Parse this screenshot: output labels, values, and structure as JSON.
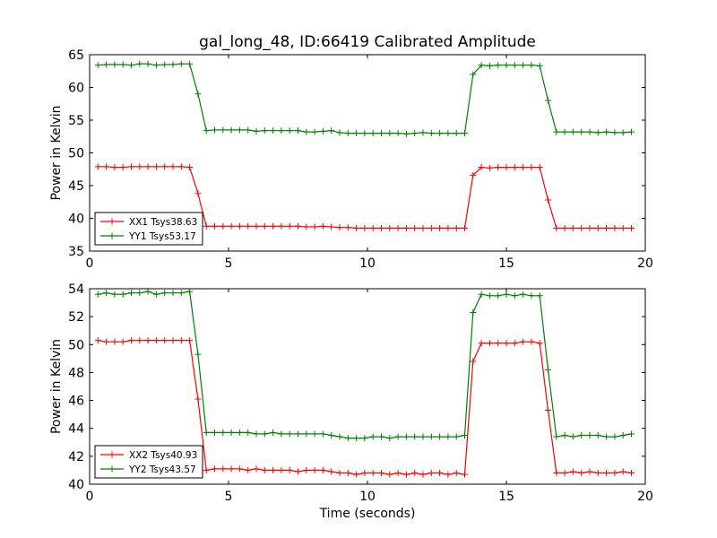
{
  "chart_data": [
    {
      "type": "line",
      "title": "gal_long_48, ID:66419 Calibrated Amplitude",
      "xlabel": "",
      "ylabel": "Power in Kelvin",
      "xlim": [
        0,
        20
      ],
      "ylim": [
        35,
        65
      ],
      "xticks": [
        0,
        5,
        10,
        15,
        20
      ],
      "yticks": [
        35,
        40,
        45,
        50,
        55,
        60,
        65
      ],
      "grid": false,
      "legend_position": "lower-left",
      "x": [
        0.3,
        0.6,
        0.9,
        1.2,
        1.5,
        1.8,
        2.1,
        2.4,
        2.7,
        3.0,
        3.3,
        3.6,
        3.9,
        4.2,
        4.5,
        4.8,
        5.1,
        5.4,
        5.7,
        6.0,
        6.3,
        6.6,
        6.9,
        7.2,
        7.5,
        7.8,
        8.1,
        8.4,
        8.7,
        9.0,
        9.3,
        9.6,
        9.9,
        10.2,
        10.5,
        10.8,
        11.1,
        11.4,
        11.7,
        12.0,
        12.3,
        12.6,
        12.9,
        13.2,
        13.5,
        13.8,
        14.1,
        14.4,
        14.7,
        15.0,
        15.3,
        15.6,
        15.9,
        16.2,
        16.5,
        16.8,
        17.1,
        17.4,
        17.7,
        18.0,
        18.3,
        18.6,
        18.9,
        19.2,
        19.5
      ],
      "series": [
        {
          "name": "XX1 Tsys38.63",
          "color": "#ff0000",
          "values": [
            47.9,
            47.9,
            47.8,
            47.8,
            47.9,
            47.9,
            47.9,
            47.9,
            47.9,
            47.9,
            47.9,
            47.8,
            43.8,
            38.8,
            38.8,
            38.8,
            38.8,
            38.8,
            38.8,
            38.8,
            38.8,
            38.8,
            38.8,
            38.8,
            38.8,
            38.7,
            38.7,
            38.8,
            38.7,
            38.6,
            38.6,
            38.5,
            38.5,
            38.5,
            38.5,
            38.5,
            38.5,
            38.5,
            38.5,
            38.5,
            38.5,
            38.5,
            38.5,
            38.5,
            38.5,
            46.6,
            47.8,
            47.7,
            47.8,
            47.8,
            47.8,
            47.8,
            47.8,
            47.8,
            42.8,
            38.5,
            38.5,
            38.5,
            38.5,
            38.5,
            38.5,
            38.5,
            38.5,
            38.5,
            38.5
          ]
        },
        {
          "name": "YY1 Tsys53.17",
          "color": "#008000",
          "values": [
            63.4,
            63.5,
            63.5,
            63.5,
            63.4,
            63.6,
            63.6,
            63.4,
            63.5,
            63.5,
            63.6,
            63.6,
            59.0,
            53.4,
            53.5,
            53.5,
            53.5,
            53.5,
            53.5,
            53.3,
            53.4,
            53.4,
            53.4,
            53.4,
            53.4,
            53.2,
            53.2,
            53.3,
            53.4,
            53.1,
            53.0,
            53.0,
            53.0,
            53.0,
            53.0,
            53.0,
            53.0,
            52.9,
            53.0,
            53.1,
            53.0,
            53.0,
            53.0,
            53.0,
            53.0,
            62.0,
            63.4,
            63.3,
            63.4,
            63.4,
            63.4,
            63.4,
            63.4,
            63.3,
            58.0,
            53.2,
            53.2,
            53.2,
            53.2,
            53.2,
            53.1,
            53.2,
            53.1,
            53.1,
            53.2
          ]
        }
      ]
    },
    {
      "type": "line",
      "title": "",
      "xlabel": "Time (seconds)",
      "ylabel": "Power in Kelvin",
      "xlim": [
        0,
        20
      ],
      "ylim": [
        40,
        54
      ],
      "xticks": [
        0,
        5,
        10,
        15,
        20
      ],
      "yticks": [
        40,
        42,
        44,
        46,
        48,
        50,
        52,
        54
      ],
      "grid": false,
      "legend_position": "lower-left",
      "x": [
        0.3,
        0.6,
        0.9,
        1.2,
        1.5,
        1.8,
        2.1,
        2.4,
        2.7,
        3.0,
        3.3,
        3.6,
        3.9,
        4.2,
        4.5,
        4.8,
        5.1,
        5.4,
        5.7,
        6.0,
        6.3,
        6.6,
        6.9,
        7.2,
        7.5,
        7.8,
        8.1,
        8.4,
        8.7,
        9.0,
        9.3,
        9.6,
        9.9,
        10.2,
        10.5,
        10.8,
        11.1,
        11.4,
        11.7,
        12.0,
        12.3,
        12.6,
        12.9,
        13.2,
        13.5,
        13.8,
        14.1,
        14.4,
        14.7,
        15.0,
        15.3,
        15.6,
        15.9,
        16.2,
        16.5,
        16.8,
        17.1,
        17.4,
        17.7,
        18.0,
        18.3,
        18.6,
        18.9,
        19.2,
        19.5
      ],
      "series": [
        {
          "name": "XX2 Tsys40.93",
          "color": "#ff0000",
          "values": [
            50.3,
            50.2,
            50.2,
            50.2,
            50.3,
            50.3,
            50.3,
            50.3,
            50.3,
            50.3,
            50.3,
            50.3,
            46.1,
            41.0,
            41.1,
            41.1,
            41.1,
            41.1,
            41.0,
            41.1,
            41.0,
            41.0,
            41.0,
            41.0,
            40.9,
            41.0,
            41.0,
            41.0,
            40.9,
            40.8,
            40.8,
            40.7,
            40.8,
            40.8,
            40.8,
            40.7,
            40.8,
            40.7,
            40.8,
            40.7,
            40.8,
            40.8,
            40.7,
            40.8,
            40.7,
            48.8,
            50.1,
            50.1,
            50.1,
            50.1,
            50.1,
            50.2,
            50.2,
            50.1,
            45.3,
            40.8,
            40.8,
            40.9,
            40.8,
            40.9,
            40.8,
            40.8,
            40.8,
            40.9,
            40.8
          ]
        },
        {
          "name": "YY2 Tsys43.57",
          "color": "#008000",
          "values": [
            53.6,
            53.7,
            53.6,
            53.6,
            53.7,
            53.7,
            53.8,
            53.6,
            53.7,
            53.7,
            53.7,
            53.8,
            49.3,
            43.7,
            43.7,
            43.7,
            43.7,
            43.7,
            43.7,
            43.6,
            43.6,
            43.7,
            43.6,
            43.6,
            43.6,
            43.6,
            43.6,
            43.6,
            43.5,
            43.4,
            43.3,
            43.3,
            43.3,
            43.4,
            43.4,
            43.3,
            43.4,
            43.4,
            43.4,
            43.4,
            43.4,
            43.4,
            43.4,
            43.4,
            43.5,
            52.3,
            53.6,
            53.5,
            53.5,
            53.6,
            53.5,
            53.6,
            53.5,
            53.5,
            48.2,
            43.4,
            43.5,
            43.4,
            43.5,
            43.5,
            43.5,
            43.4,
            43.4,
            43.5,
            43.6
          ]
        }
      ]
    }
  ]
}
